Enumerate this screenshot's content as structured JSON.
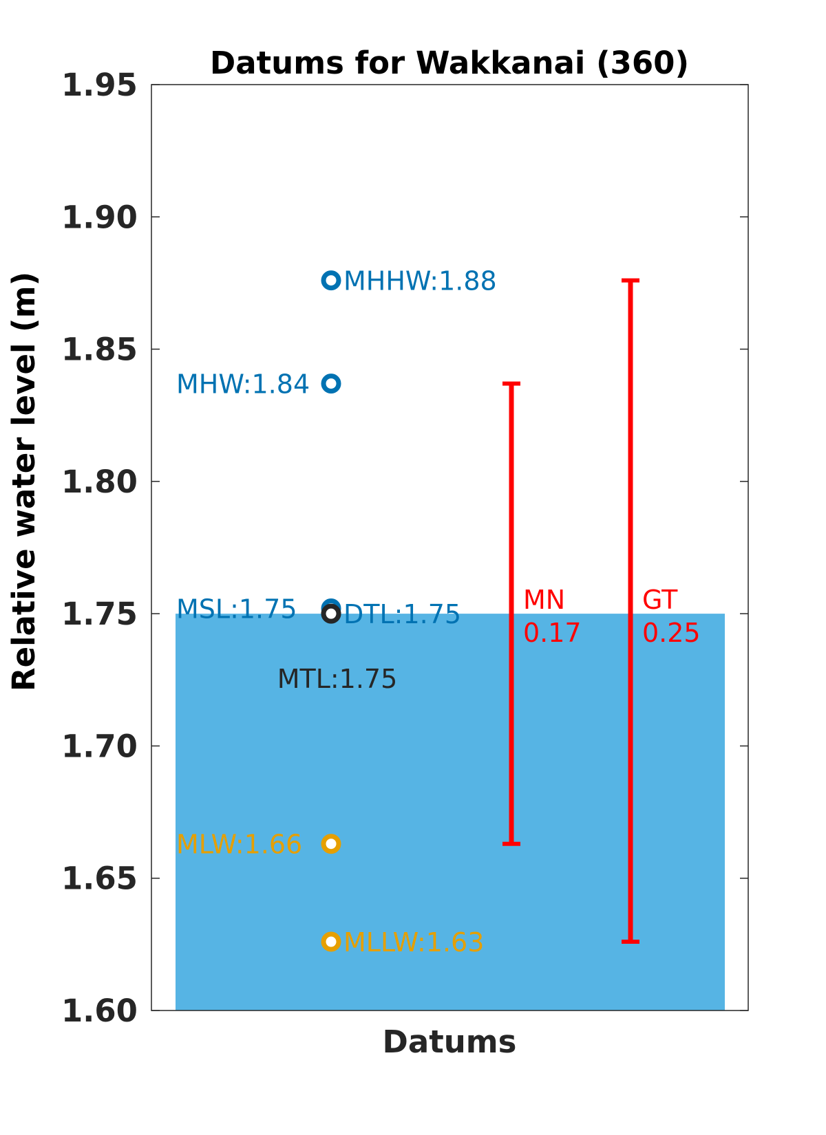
{
  "chart_data": {
    "type": "scatter",
    "title": "Datums for Wakkanai (360)",
    "xlabel": "Datums",
    "ylabel": "Relative water level (m)",
    "ylim": [
      1.6,
      1.95
    ],
    "yticks": [
      "1.60",
      "1.65",
      "1.70",
      "1.75",
      "1.80",
      "1.85",
      "1.90",
      "1.95"
    ],
    "grid": false,
    "fill": {
      "from": 1.6,
      "to": 1.75,
      "color": "#56b4e4"
    },
    "datums": [
      {
        "label": "MHHW:1.88",
        "value": 1.876,
        "color": "#0072b2",
        "label_side": "right"
      },
      {
        "label": "MHW:1.84",
        "value": 1.837,
        "color": "#0072b2",
        "label_side": "left"
      },
      {
        "label": "MSL:1.75",
        "value": 1.752,
        "color": "#0072b2",
        "label_side": "left"
      },
      {
        "label": "DTL:1.75",
        "value": 1.75,
        "color": "#0072b2",
        "label_side": "right"
      },
      {
        "label": "MTL:1.75",
        "value": 1.75,
        "color": "#262626",
        "label_side": "below"
      },
      {
        "label": "MLW:1.66",
        "value": 1.663,
        "color": "#e69f00",
        "label_side": "left"
      },
      {
        "label": "MLLW:1.63",
        "value": 1.626,
        "color": "#e69f00",
        "label_side": "right"
      }
    ],
    "ranges": [
      {
        "name": "MN",
        "value_label": "0.17",
        "from": 1.663,
        "to": 1.837,
        "color": "#ff0000"
      },
      {
        "name": "GT",
        "value_label": "0.25",
        "from": 1.626,
        "to": 1.876,
        "color": "#ff0000"
      }
    ]
  }
}
